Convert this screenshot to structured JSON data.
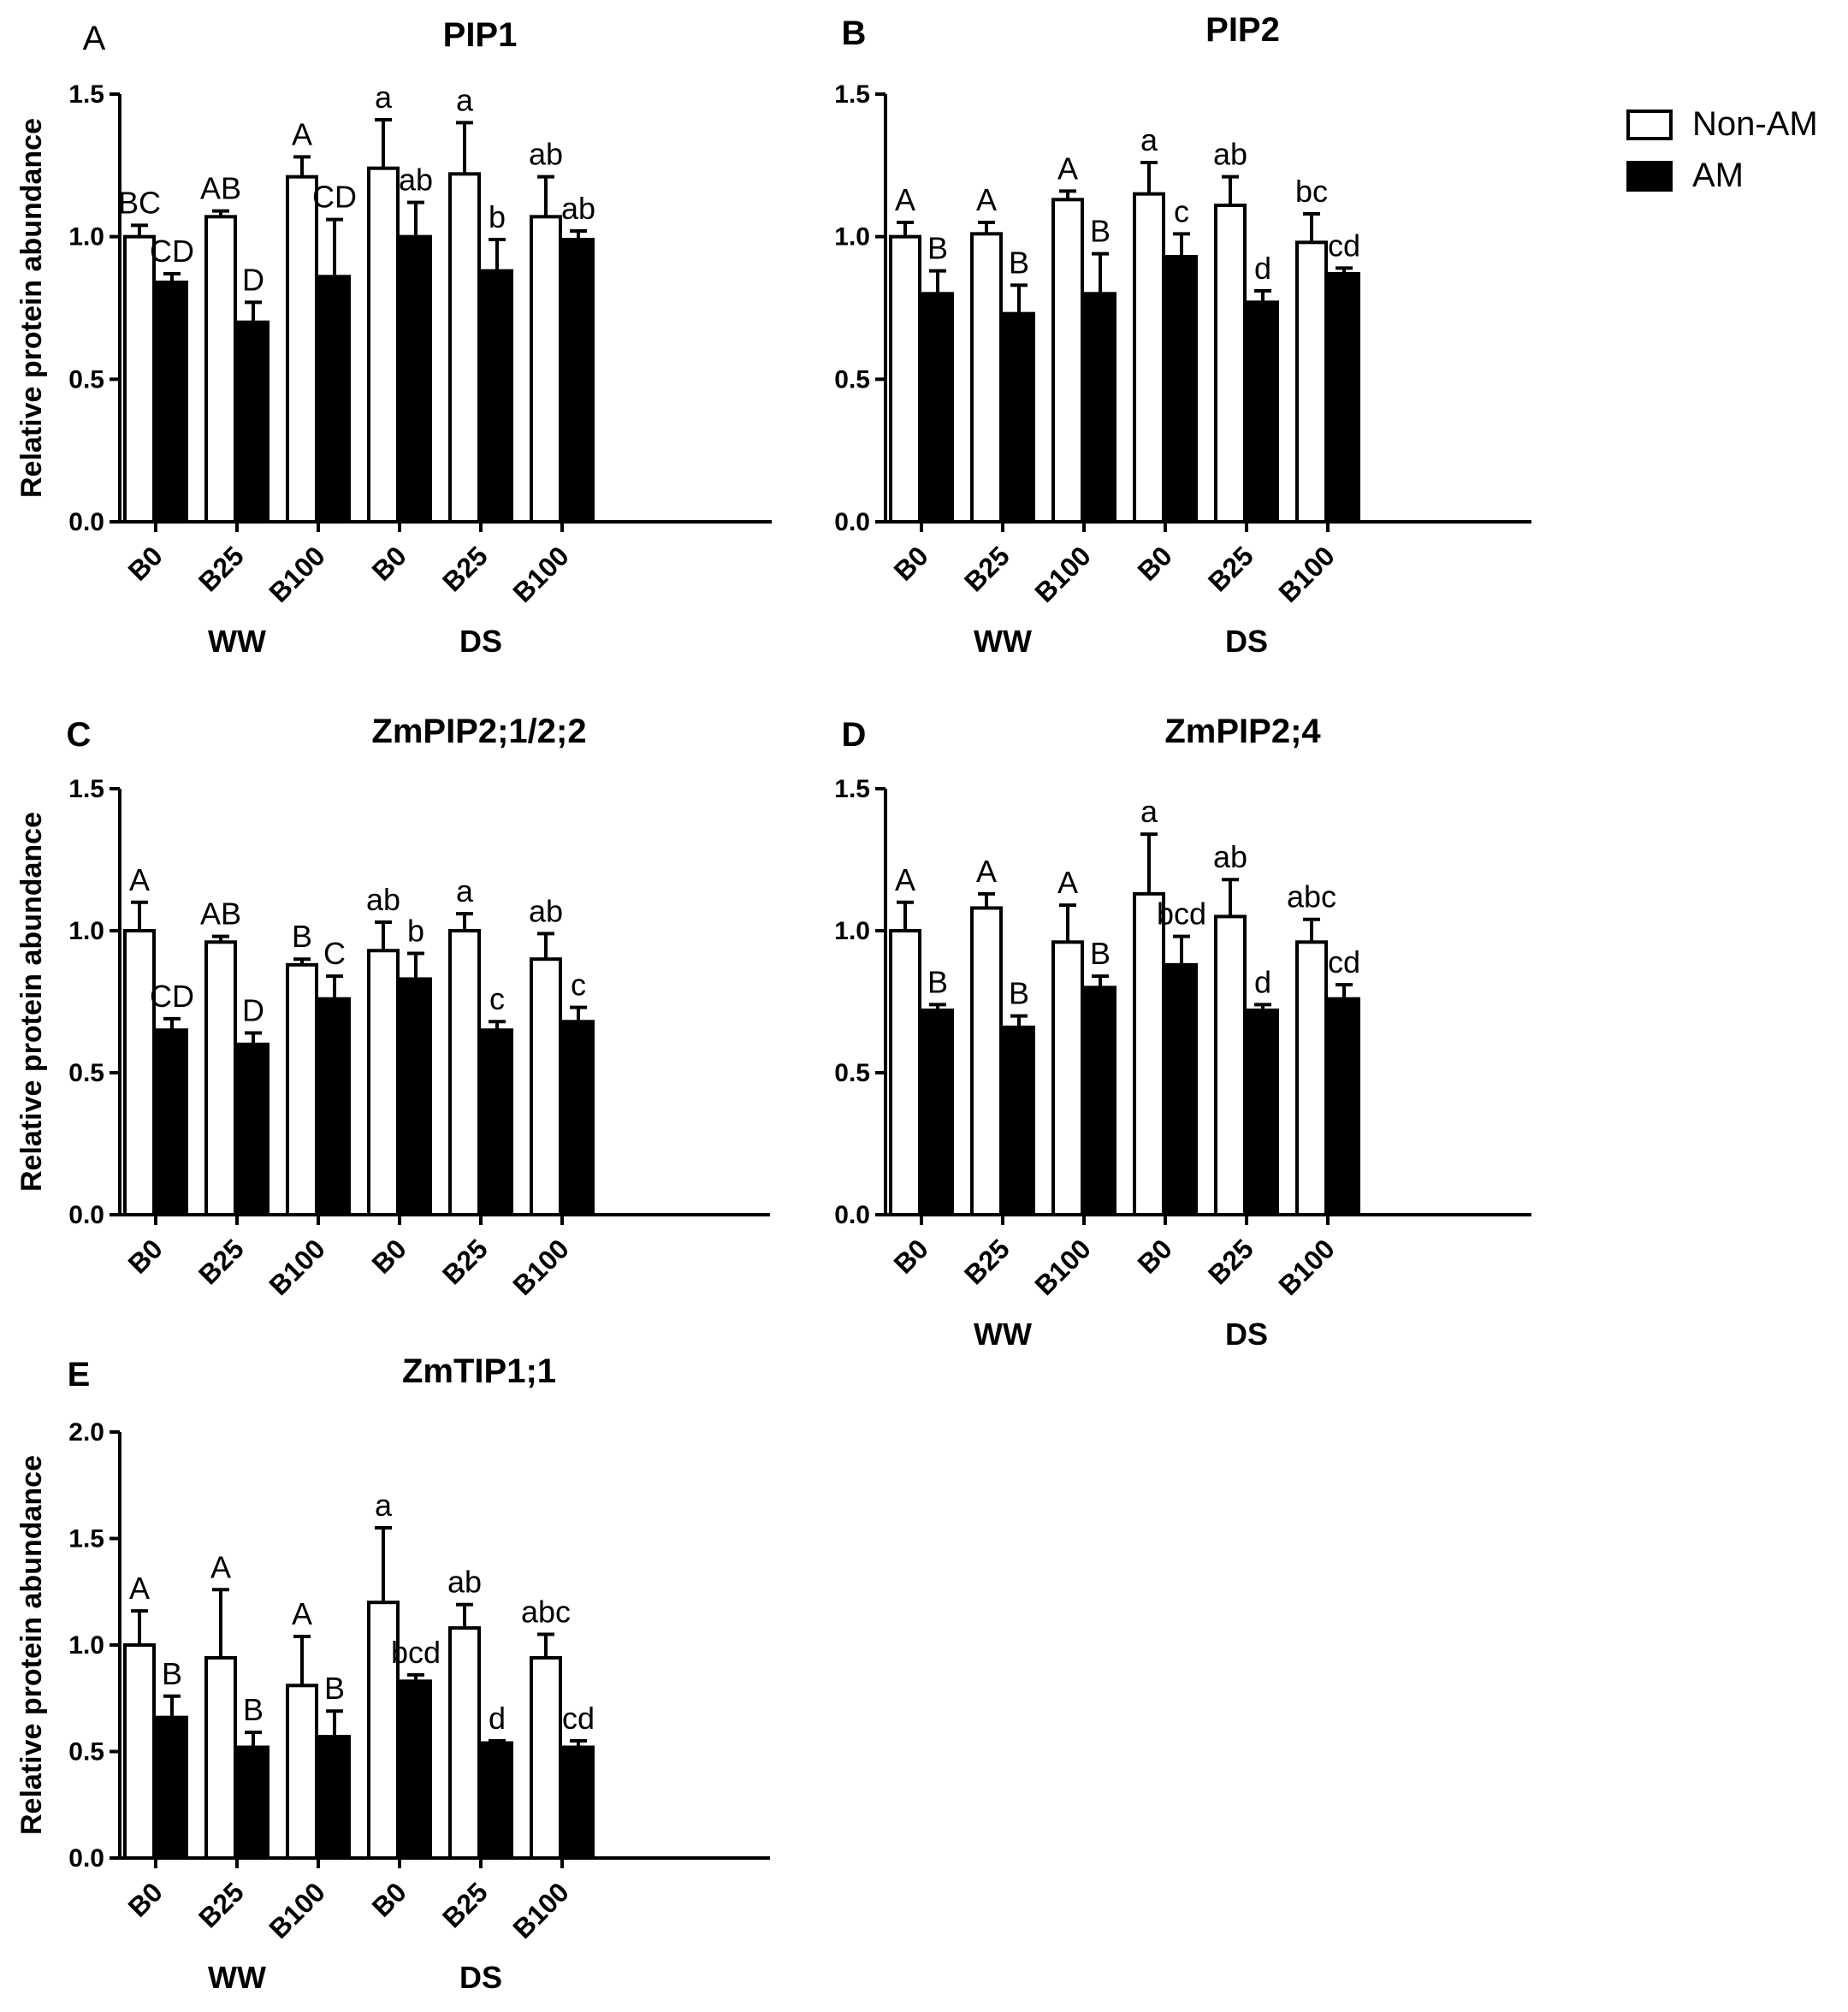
{
  "legend": {
    "items": [
      {
        "label": "Non-AM",
        "fill": "#ffffff"
      },
      {
        "label": "AM",
        "fill": "#000000"
      }
    ]
  },
  "colors": {
    "axis": "#000000",
    "non_am": "#ffffff",
    "am": "#000000"
  },
  "chart_data": [
    {
      "panel": "A",
      "title": "PIP1",
      "type": "bar",
      "ylabel": "Relative protein abundance",
      "ylim": [
        0,
        1.5
      ],
      "yticks": [
        "0.0",
        "0.5",
        "1.0",
        "1.5"
      ],
      "ytick_values": [
        0,
        0.5,
        1.0,
        1.5
      ],
      "categories": [
        "B0",
        "B25",
        "B100",
        "B0",
        "B25",
        "B100"
      ],
      "groups": [
        "WW",
        "DS"
      ],
      "series": [
        {
          "name": "Non-AM",
          "values": [
            1.0,
            1.07,
            1.21,
            1.24,
            1.22,
            1.07
          ],
          "errors": [
            0.04,
            0.02,
            0.07,
            0.17,
            0.18,
            0.14
          ],
          "labels": [
            "BC",
            "AB",
            "A",
            "a",
            "a",
            "ab"
          ]
        },
        {
          "name": "AM",
          "values": [
            0.84,
            0.7,
            0.86,
            1.0,
            0.88,
            0.99
          ],
          "errors": [
            0.03,
            0.07,
            0.2,
            0.12,
            0.11,
            0.03
          ],
          "labels": [
            "CD",
            "D",
            "CD",
            "ab",
            "b",
            "ab"
          ]
        }
      ]
    },
    {
      "panel": "B",
      "title": "PIP2",
      "type": "bar",
      "ylabel": "",
      "ylim": [
        0,
        1.5
      ],
      "yticks": [
        "0.0",
        "0.5",
        "1.0",
        "1.5"
      ],
      "ytick_values": [
        0,
        0.5,
        1.0,
        1.5
      ],
      "categories": [
        "B0",
        "B25",
        "B100",
        "B0",
        "B25",
        "B100"
      ],
      "groups": [
        "WW",
        "DS"
      ],
      "series": [
        {
          "name": "Non-AM",
          "values": [
            1.0,
            1.01,
            1.13,
            1.15,
            1.11,
            0.98
          ],
          "errors": [
            0.05,
            0.04,
            0.03,
            0.11,
            0.1,
            0.1
          ],
          "labels": [
            "A",
            "A",
            "A",
            "a",
            "ab",
            "bc"
          ]
        },
        {
          "name": "AM",
          "values": [
            0.8,
            0.73,
            0.8,
            0.93,
            0.77,
            0.87
          ],
          "errors": [
            0.08,
            0.1,
            0.14,
            0.08,
            0.04,
            0.02
          ],
          "labels": [
            "B",
            "B",
            "B",
            "c",
            "d",
            "cd"
          ]
        }
      ]
    },
    {
      "panel": "C",
      "title": "ZmPIP2;1/2;2",
      "type": "bar",
      "ylabel": "Relative protein abundance",
      "ylim": [
        0,
        1.5
      ],
      "yticks": [
        "0.0",
        "0.5",
        "1.0",
        "1.5"
      ],
      "ytick_values": [
        0,
        0.5,
        1.0,
        1.5
      ],
      "categories": [
        "B0",
        "B25",
        "B100",
        "B0",
        "B25",
        "B100"
      ],
      "groups": [],
      "series": [
        {
          "name": "Non-AM",
          "values": [
            1.0,
            0.96,
            0.88,
            0.93,
            1.0,
            0.9
          ],
          "errors": [
            0.1,
            0.02,
            0.02,
            0.1,
            0.06,
            0.09
          ],
          "labels": [
            "A",
            "AB",
            "B",
            "ab",
            "a",
            "ab"
          ]
        },
        {
          "name": "AM",
          "values": [
            0.65,
            0.6,
            0.76,
            0.83,
            0.65,
            0.68
          ],
          "errors": [
            0.04,
            0.04,
            0.08,
            0.09,
            0.03,
            0.05
          ],
          "labels": [
            "CD",
            "D",
            "C",
            "b",
            "c",
            "c"
          ]
        }
      ]
    },
    {
      "panel": "D",
      "title": "ZmPIP2;4",
      "type": "bar",
      "ylabel": "",
      "ylim": [
        0,
        1.5
      ],
      "yticks": [
        "0.0",
        "0.5",
        "1.0",
        "1.5"
      ],
      "ytick_values": [
        0,
        0.5,
        1.0,
        1.5
      ],
      "categories": [
        "B0",
        "B25",
        "B100",
        "B0",
        "B25",
        "B100"
      ],
      "groups": [
        "WW",
        "DS"
      ],
      "series": [
        {
          "name": "Non-AM",
          "values": [
            1.0,
            1.08,
            0.96,
            1.13,
            1.05,
            0.96
          ],
          "errors": [
            0.1,
            0.05,
            0.13,
            0.21,
            0.13,
            0.08
          ],
          "labels": [
            "A",
            "A",
            "A",
            "a",
            "ab",
            "abc"
          ]
        },
        {
          "name": "AM",
          "values": [
            0.72,
            0.66,
            0.8,
            0.88,
            0.72,
            0.76
          ],
          "errors": [
            0.02,
            0.04,
            0.04,
            0.1,
            0.02,
            0.05
          ],
          "labels": [
            "B",
            "B",
            "B",
            "bcd",
            "d",
            "cd"
          ]
        }
      ]
    },
    {
      "panel": "E",
      "title": "ZmTIP1;1",
      "type": "bar",
      "ylabel": "Relative protein abundance",
      "ylim": [
        0,
        2.0
      ],
      "yticks": [
        "0.0",
        "0.5",
        "1.0",
        "1.5",
        "2.0"
      ],
      "ytick_values": [
        0,
        0.5,
        1.0,
        1.5,
        2.0
      ],
      "categories": [
        "B0",
        "B25",
        "B100",
        "B0",
        "B25",
        "B100"
      ],
      "groups": [
        "WW",
        "DS"
      ],
      "series": [
        {
          "name": "Non-AM",
          "values": [
            1.0,
            0.94,
            0.81,
            1.2,
            1.08,
            0.94
          ],
          "errors": [
            0.16,
            0.32,
            0.23,
            0.35,
            0.11,
            0.11
          ],
          "labels": [
            "A",
            "A",
            "A",
            "a",
            "ab",
            "abc"
          ]
        },
        {
          "name": "AM",
          "values": [
            0.66,
            0.52,
            0.57,
            0.83,
            0.54,
            0.52
          ],
          "errors": [
            0.1,
            0.07,
            0.12,
            0.03,
            0.01,
            0.03
          ],
          "labels": [
            "B",
            "B",
            "B",
            "bcd",
            "d",
            "cd"
          ]
        }
      ]
    }
  ]
}
